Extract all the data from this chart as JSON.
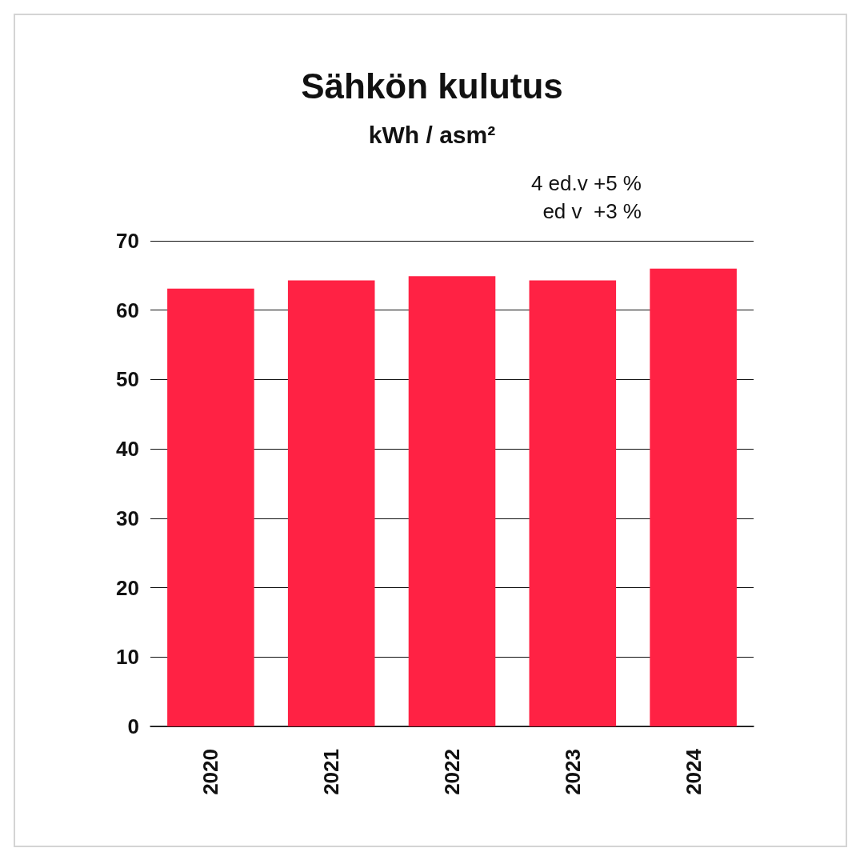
{
  "chart_data": {
    "type": "bar",
    "title": "Sähkön kulutus",
    "subtitle": "kWh / asm²",
    "categories": [
      "2020",
      "2021",
      "2022",
      "2023",
      "2024"
    ],
    "values": [
      63.1,
      64.3,
      64.9,
      64.3,
      66.0
    ],
    "color": "#ff2244",
    "ylim": [
      0,
      70
    ],
    "yticks": [
      0,
      10,
      20,
      30,
      40,
      50,
      60,
      70
    ],
    "grid": "y",
    "annotations": [
      "4 ed.v +5 %",
      "ed v  +3 %"
    ]
  }
}
